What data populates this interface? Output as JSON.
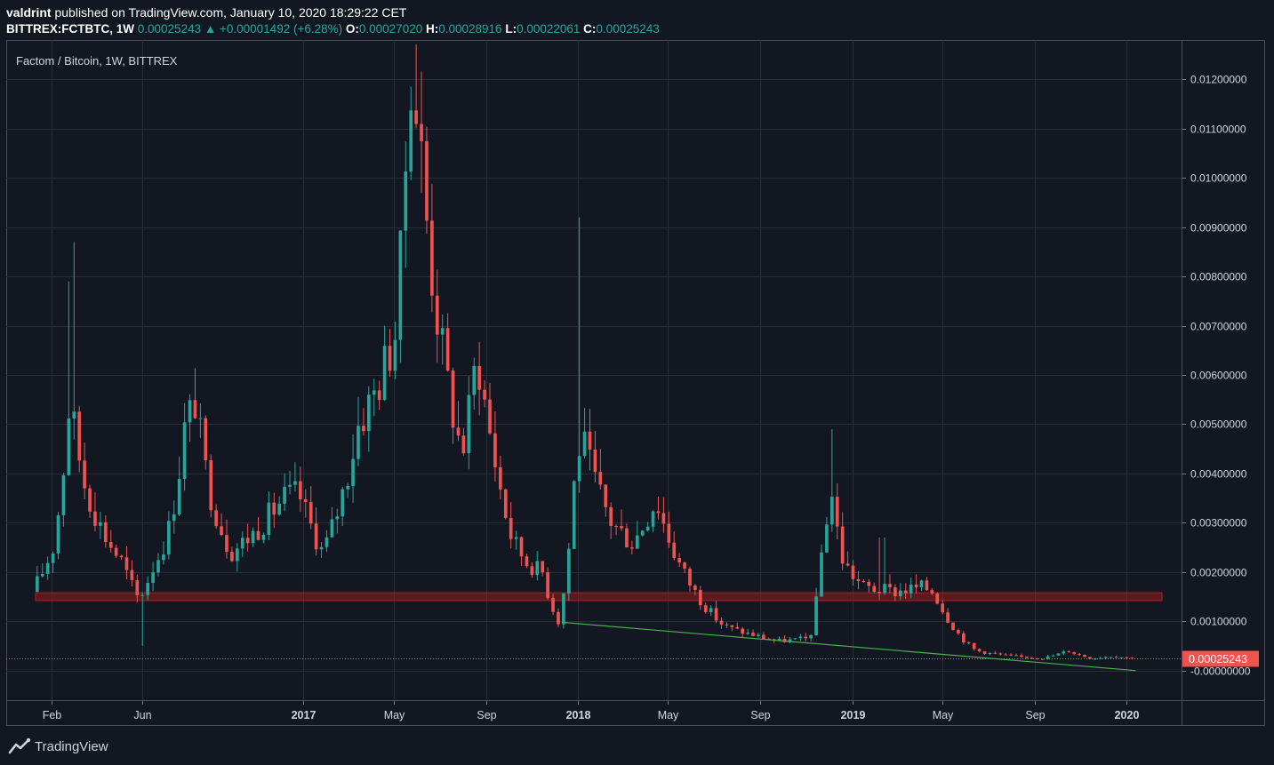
{
  "header": {
    "author": "valdrint",
    "published": "published on TradingView.com, January 10, 2020 18:29:22 CET"
  },
  "ticker": {
    "symbol": "BITTREX:FCTBTC, 1W",
    "last": "0.00025243",
    "change_arrow": "▲",
    "change": "+0.00001492 (+6.28%)",
    "o_label": "O:",
    "o": "0.00027020",
    "h_label": "H:",
    "h": "0.00028916",
    "l_label": "L:",
    "l": "0.00022061",
    "c_label": "C:",
    "c": "0.00025243"
  },
  "series_title": "Factom / Bitcoin, 1W, BITTREX",
  "footer": {
    "brand": "TradingView",
    "logo_icon": "tradingview-logo-icon"
  },
  "colors": {
    "background": "#131722",
    "grid": "#2a2e39",
    "up": "#26a69a",
    "down": "#ef5350",
    "support_zone": "#b71c1c",
    "trendline": "#4caf50",
    "price_line": "#ef5350"
  },
  "chart_data": {
    "type": "candlestick",
    "interval": "1W",
    "x_ticks": [
      "Feb",
      "Jun",
      "2017",
      "May",
      "Sep",
      "2018",
      "May",
      "Sep",
      "2019",
      "May",
      "Sep",
      "2020"
    ],
    "x_tick_dates": [
      "2016-02-01",
      "2016-06-01",
      "2017-01-01",
      "2017-05-01",
      "2017-09-01",
      "2018-01-01",
      "2018-05-01",
      "2018-09-01",
      "2019-01-01",
      "2019-05-01",
      "2019-09-01",
      "2020-01-01"
    ],
    "y_ticks": [
      "0.01200000",
      "0.01100000",
      "0.01000000",
      "0.00900000",
      "0.00800000",
      "0.00700000",
      "0.00600000",
      "0.00500000",
      "0.00400000",
      "0.00300000",
      "0.00200000",
      "0.00100000",
      "-0.00000000"
    ],
    "y_range": [
      -0.0006,
      0.0128
    ],
    "last_price_label": "0.00025243",
    "support_zone": {
      "low": 0.00142,
      "high": 0.00158,
      "from": "2016-01-11",
      "to": "2020-02-17"
    },
    "trendline": {
      "from": {
        "date": "2017-12-11",
        "value": 0.00098
      },
      "to": {
        "date": "2020-01-13",
        "value": 0.0
      }
    },
    "price_anchors": [
      {
        "date": "2016-01-11",
        "value": 0.0016
      },
      {
        "date": "2016-02-08",
        "value": 0.0025
      },
      {
        "date": "2016-03-01",
        "value": 0.0055
      },
      {
        "date": "2016-03-21",
        "value": 0.0038
      },
      {
        "date": "2016-04-15",
        "value": 0.0028
      },
      {
        "date": "2016-05-10",
        "value": 0.0022
      },
      {
        "date": "2016-06-01",
        "value": 0.00145
      },
      {
        "date": "2016-06-20",
        "value": 0.0021
      },
      {
        "date": "2016-07-10",
        "value": 0.0028
      },
      {
        "date": "2016-08-01",
        "value": 0.0049
      },
      {
        "date": "2016-08-15",
        "value": 0.0055
      },
      {
        "date": "2016-09-01",
        "value": 0.0038
      },
      {
        "date": "2016-10-01",
        "value": 0.0024
      },
      {
        "date": "2016-11-01",
        "value": 0.0028
      },
      {
        "date": "2016-12-10",
        "value": 0.0035
      },
      {
        "date": "2016-12-31",
        "value": 0.0036
      },
      {
        "date": "2017-02-01",
        "value": 0.0024
      },
      {
        "date": "2017-02-25",
        "value": 0.0035
      },
      {
        "date": "2017-03-20",
        "value": 0.005
      },
      {
        "date": "2017-04-15",
        "value": 0.0058
      },
      {
        "date": "2017-05-10",
        "value": 0.007
      },
      {
        "date": "2017-05-28",
        "value": 0.0125
      },
      {
        "date": "2017-06-10",
        "value": 0.0108
      },
      {
        "date": "2017-06-25",
        "value": 0.0082
      },
      {
        "date": "2017-07-15",
        "value": 0.006
      },
      {
        "date": "2017-08-05",
        "value": 0.0044
      },
      {
        "date": "2017-08-25",
        "value": 0.0065
      },
      {
        "date": "2017-09-20",
        "value": 0.0041
      },
      {
        "date": "2017-10-10",
        "value": 0.0027
      },
      {
        "date": "2017-10-30",
        "value": 0.0022
      },
      {
        "date": "2017-11-20",
        "value": 0.002
      },
      {
        "date": "2017-12-11",
        "value": 0.001
      },
      {
        "date": "2017-12-31",
        "value": 0.0037
      },
      {
        "date": "2018-01-10",
        "value": 0.0048
      },
      {
        "date": "2018-01-25",
        "value": 0.004
      },
      {
        "date": "2018-02-20",
        "value": 0.003
      },
      {
        "date": "2018-03-20",
        "value": 0.0026
      },
      {
        "date": "2018-04-20",
        "value": 0.0035
      },
      {
        "date": "2018-05-20",
        "value": 0.0022
      },
      {
        "date": "2018-06-20",
        "value": 0.0014
      },
      {
        "date": "2018-07-20",
        "value": 0.0009
      },
      {
        "date": "2018-08-20",
        "value": 0.00075
      },
      {
        "date": "2018-10-01",
        "value": 0.0006
      },
      {
        "date": "2018-11-10",
        "value": 0.00065
      },
      {
        "date": "2018-11-25",
        "value": 0.0023
      },
      {
        "date": "2018-12-08",
        "value": 0.0038
      },
      {
        "date": "2018-12-25",
        "value": 0.0022
      },
      {
        "date": "2019-01-20",
        "value": 0.0017
      },
      {
        "date": "2019-03-01",
        "value": 0.0016
      },
      {
        "date": "2019-04-10",
        "value": 0.0017
      },
      {
        "date": "2019-04-25",
        "value": 0.0016
      },
      {
        "date": "2019-05-20",
        "value": 0.0009
      },
      {
        "date": "2019-06-20",
        "value": 0.0004
      },
      {
        "date": "2019-08-01",
        "value": 0.0003
      },
      {
        "date": "2019-09-15",
        "value": 0.00025
      },
      {
        "date": "2019-10-20",
        "value": 0.0004
      },
      {
        "date": "2019-11-20",
        "value": 0.00025
      },
      {
        "date": "2019-12-20",
        "value": 0.0003
      },
      {
        "date": "2020-01-10",
        "value": 0.00025
      }
    ],
    "spikes": [
      {
        "date": "2016-03-01",
        "high": 0.0087
      },
      {
        "date": "2016-02-22",
        "high": 0.0079
      },
      {
        "date": "2017-12-31",
        "high": 0.0092
      },
      {
        "date": "2018-12-01",
        "high": 0.0049
      },
      {
        "date": "2019-02-08",
        "high": 0.0027
      },
      {
        "date": "2016-06-01",
        "low": 0.0005
      }
    ]
  }
}
